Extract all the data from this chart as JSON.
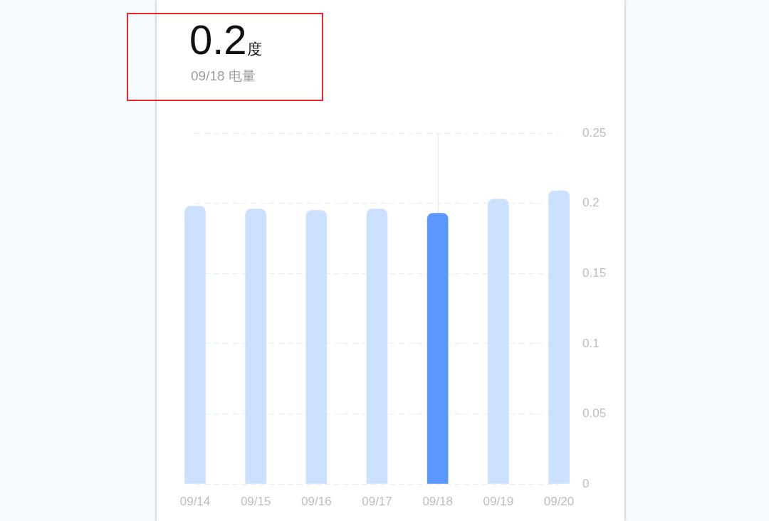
{
  "chart_data": {
    "type": "bar",
    "title": "0.2度",
    "subtitle": "09/18 电量",
    "categories": [
      "09/14",
      "09/15",
      "09/16",
      "09/17",
      "09/18",
      "09/19",
      "09/20"
    ],
    "values": [
      0.198,
      0.196,
      0.195,
      0.196,
      0.193,
      0.203,
      0.209
    ],
    "colors": [
      "#cce0ff",
      "#cce0ff",
      "#cce0ff",
      "#cce0ff",
      "#5b97fd",
      "#cce0ff",
      "#cce0ff"
    ],
    "ylim": [
      0,
      0.25
    ],
    "yticks": [
      0,
      0.05,
      0.1,
      0.15,
      0.2,
      0.25
    ],
    "grid": "y",
    "ref_lines": [
      {
        "axis": "x",
        "value": "09/18",
        "color": "#e8e8e8"
      }
    ]
  }
}
